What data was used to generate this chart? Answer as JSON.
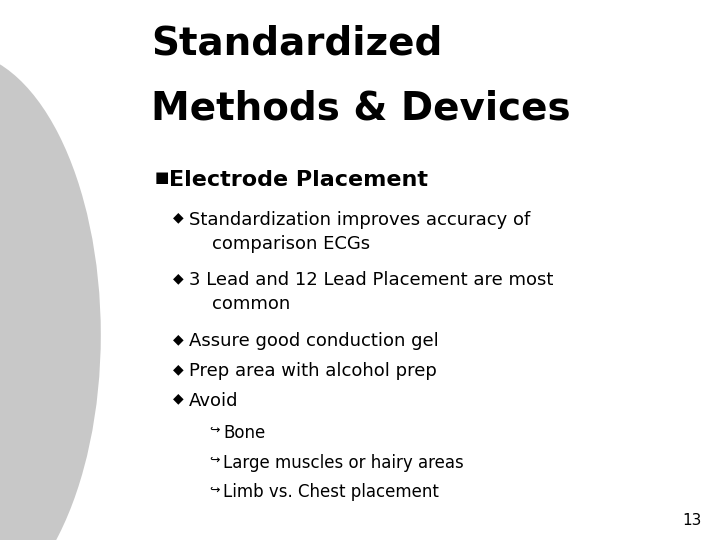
{
  "background_color": "#ffffff",
  "circle_color": "#c8c8c8",
  "title_line1": "Standardized",
  "title_line2": "Methods & Devices",
  "title_fontsize": 28,
  "bullet1_text": "Electrode Placement",
  "bullet1_fontsize": 16,
  "sub_fontsize": 13,
  "sub3_fontsize": 12,
  "page_num": "13",
  "page_fontsize": 11,
  "items": [
    {
      "level": 0,
      "bullet": "■",
      "text": "Electrode Placement",
      "bold": true,
      "bsize": 11
    },
    {
      "level": 1,
      "bullet": "◆",
      "text": "Standardization improves accuracy of",
      "bold": false,
      "bsize": 10
    },
    {
      "level": 1,
      "bullet": "",
      "text": "    comparison ECGs",
      "bold": false,
      "bsize": 10
    },
    {
      "level": 1,
      "bullet": "◆",
      "text": "3 Lead and 12 Lead Placement are most",
      "bold": false,
      "bsize": 10
    },
    {
      "level": 1,
      "bullet": "",
      "text": "    common",
      "bold": false,
      "bsize": 10
    },
    {
      "level": 1,
      "bullet": "◆",
      "text": "Assure good conduction gel",
      "bold": false,
      "bsize": 10
    },
    {
      "level": 1,
      "bullet": "◆",
      "text": "Prep area with alcohol prep",
      "bold": false,
      "bsize": 10
    },
    {
      "level": 1,
      "bullet": "◆",
      "text": "Avoid",
      "bold": false,
      "bsize": 10
    },
    {
      "level": 2,
      "bullet": "↵",
      "text": "Bone",
      "bold": false,
      "bsize": 9
    },
    {
      "level": 2,
      "bullet": "↵",
      "text": "Large muscles or hairy areas",
      "bold": false,
      "bsize": 9
    },
    {
      "level": 2,
      "bullet": "↵",
      "text": "Limb vs. Chest placement",
      "bold": false,
      "bsize": 9
    }
  ]
}
